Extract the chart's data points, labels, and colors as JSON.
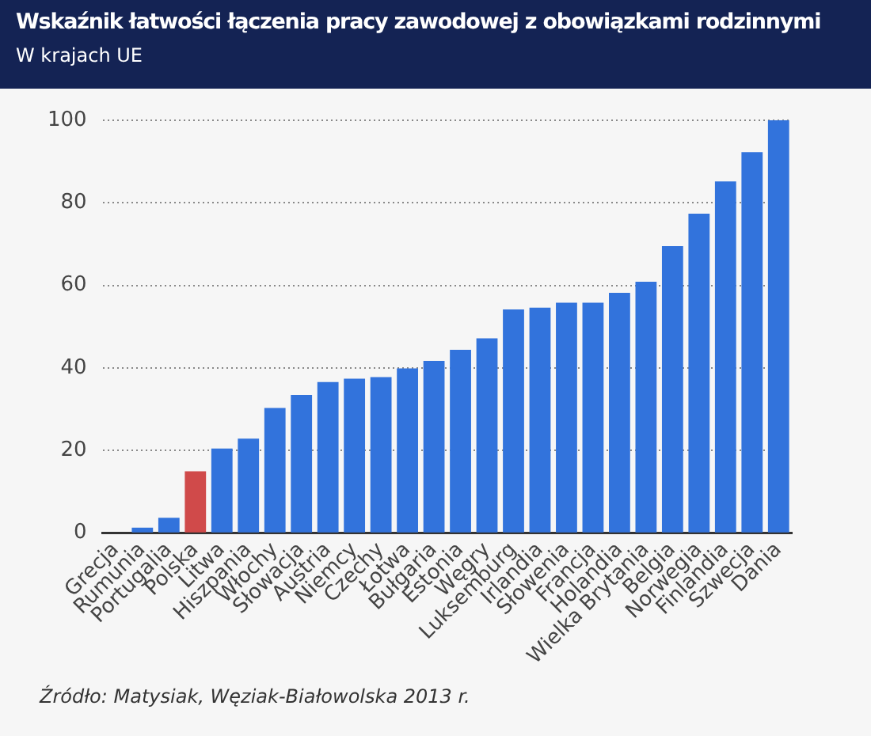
{
  "chart_data": {
    "type": "bar",
    "title": "Wskaźnik łatwości łączenia pracy zawodowej z obowiązkami rodzinnymi",
    "subtitle": "W krajach UE",
    "categories": [
      "Grecja",
      "Rumunia",
      "Portugalia",
      "Polska",
      "Litwa",
      "Hiszpania",
      "Włochy",
      "Słowacja",
      "Austria",
      "Niemcy",
      "Czechy",
      "Łotwa",
      "Bułgaria",
      "Estonia",
      "Węgry",
      "Luksemburg",
      "Irlandia",
      "Słowenia",
      "Francja",
      "Holandia",
      "Wielka Brytania",
      "Belgia",
      "Norwegia",
      "Finlandia",
      "Szwecja",
      "Dania"
    ],
    "values": [
      0,
      1.3,
      3.7,
      15,
      20.5,
      22.9,
      30.3,
      33.5,
      36.6,
      37.4,
      37.8,
      39.9,
      41.7,
      44.4,
      47.2,
      54.2,
      54.6,
      55.8,
      55.8,
      58.2,
      60.9,
      69.5,
      77.4,
      85.2,
      92.3,
      100
    ],
    "colors": [
      "#3273dc",
      "#3273dc",
      "#3273dc",
      "#d04a4a",
      "#3273dc",
      "#3273dc",
      "#3273dc",
      "#3273dc",
      "#3273dc",
      "#3273dc",
      "#3273dc",
      "#3273dc",
      "#3273dc",
      "#3273dc",
      "#3273dc",
      "#3273dc",
      "#3273dc",
      "#3273dc",
      "#3273dc",
      "#3273dc",
      "#3273dc",
      "#3273dc",
      "#3273dc",
      "#3273dc",
      "#3273dc",
      "#3273dc"
    ],
    "ylim": [
      0,
      100
    ],
    "yticks": [
      0,
      20,
      40,
      60,
      80,
      100
    ],
    "grid": "y",
    "legend": false,
    "annotations": [
      "Źródło: Matysiak, Węziak-Białowolska 2013 r."
    ]
  }
}
